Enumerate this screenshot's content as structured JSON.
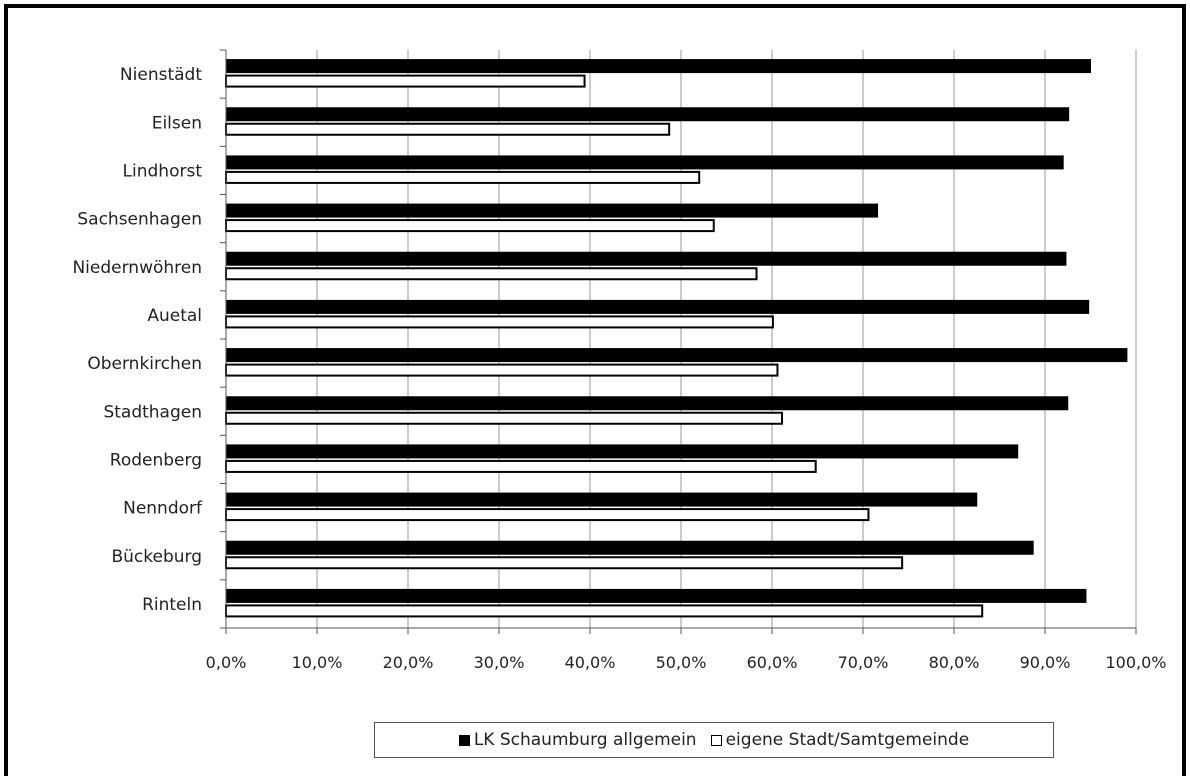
{
  "chart_data": {
    "type": "bar",
    "orientation": "horizontal",
    "categories": [
      "Nienstädt",
      "Eilsen",
      "Lindhorst",
      "Sachsenhagen",
      "Niedernwöhren",
      "Auetal",
      "Obernkirchen",
      "Stadthagen",
      "Rodenberg",
      "Nenndorf",
      "Bückeburg",
      "Rinteln"
    ],
    "series": [
      {
        "name": "LK Schaumburg allgemein",
        "color": "#000000",
        "values": [
          95.0,
          92.6,
          92.0,
          71.6,
          92.3,
          94.8,
          99.0,
          92.5,
          87.0,
          82.5,
          88.7,
          94.5
        ]
      },
      {
        "name": "eigene Stadt/Samtgemeinde",
        "color": "#ffffff",
        "values": [
          39.4,
          48.7,
          52.0,
          53.6,
          58.3,
          60.1,
          60.6,
          61.1,
          64.8,
          70.6,
          74.3,
          83.1
        ]
      }
    ],
    "xlim": [
      0,
      100
    ],
    "xticks": [
      0,
      10,
      20,
      30,
      40,
      50,
      60,
      70,
      80,
      90,
      100
    ],
    "xtick_labels": [
      "0,0%",
      "10,0%",
      "20,0%",
      "30,0%",
      "40,0%",
      "50,0%",
      "60,0%",
      "70,0%",
      "80,0%",
      "90,0%",
      "100,0%"
    ],
    "grid": "vertical",
    "legend": "bottom",
    "title": "",
    "xlabel": "",
    "ylabel": ""
  }
}
